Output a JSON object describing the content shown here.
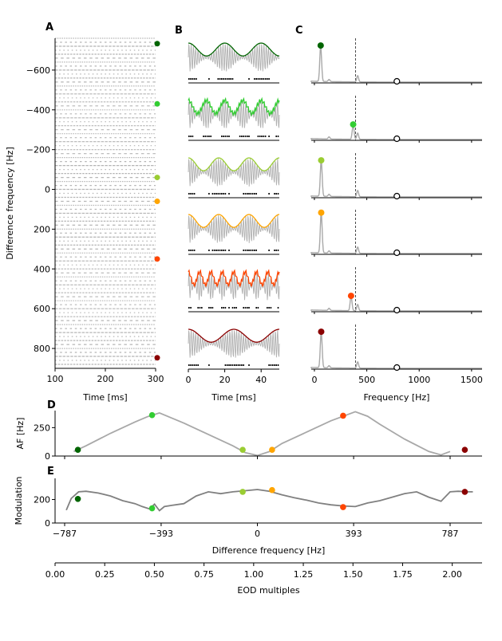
{
  "panel_letters": {
    "A": "A",
    "B": "B",
    "C": "C",
    "D": "D",
    "E": "E"
  },
  "colors": [
    "#006400",
    "#32cd32",
    "#9acd32",
    "#ffa500",
    "#ff4500",
    "#8b0000"
  ],
  "chart_data": [
    {
      "id": "A",
      "type": "scatter",
      "xlabel": "Time [ms]",
      "ylabel": "Difference frequency [Hz]",
      "xlim": [
        100,
        300
      ],
      "ylim": [
        900,
        -760
      ],
      "xticks": [
        100,
        200,
        300
      ],
      "yticks": [
        -600,
        -400,
        -200,
        0,
        200,
        400,
        600,
        800
      ],
      "ytick_labels": [
        "−600",
        "−400",
        "−200",
        "0",
        "200",
        "400",
        "600",
        "800"
      ],
      "spike_raster_rows": {
        "from": -760,
        "to": 880,
        "step": 20
      },
      "markers": [
        {
          "df": -733,
          "color": "#006400"
        },
        {
          "df": -430,
          "color": "#32cd32"
        },
        {
          "df": -60,
          "color": "#9acd32"
        },
        {
          "df": 60,
          "color": "#ffa500"
        },
        {
          "df": 350,
          "color": "#ff4500"
        },
        {
          "df": 847,
          "color": "#8b0000"
        }
      ]
    },
    {
      "id": "B",
      "type": "line",
      "xlabel": "Time [ms]",
      "xlim": [
        0,
        50
      ],
      "xticks": [
        0,
        20,
        40
      ],
      "traces": [
        {
          "color": "#006400",
          "beat_periods": 2.5
        },
        {
          "color": "#32cd32",
          "beat_periods": 5
        },
        {
          "color": "#9acd32",
          "beat_periods": 3
        },
        {
          "color": "#ffa500",
          "beat_periods": 3
        },
        {
          "color": "#ff4500",
          "beat_periods": 8
        },
        {
          "color": "#8b0000",
          "beat_periods": 2
        }
      ]
    },
    {
      "id": "C",
      "type": "line",
      "xlabel": "Frequency [Hz]",
      "xlim": [
        -30,
        1600
      ],
      "xticks": [
        0,
        500,
        1000,
        1500
      ],
      "eod_line_x": 393,
      "black_marker_x": 787,
      "peaks": [
        {
          "x": 60,
          "rel": 0.85,
          "color": "#006400"
        },
        {
          "x": 370,
          "rel": 0.35,
          "color": "#32cd32"
        },
        {
          "x": 65,
          "rel": 0.85,
          "color": "#9acd32"
        },
        {
          "x": 65,
          "rel": 0.95,
          "color": "#ffa500"
        },
        {
          "x": 350,
          "rel": 0.35,
          "color": "#ff4500"
        },
        {
          "x": 65,
          "rel": 0.85,
          "color": "#8b0000"
        }
      ]
    },
    {
      "id": "D",
      "type": "line",
      "ylabel": "AF [Hz]",
      "xlim": [
        -787,
        787
      ],
      "ylim": [
        0,
        400
      ],
      "yticks": [
        0,
        250
      ],
      "x": [
        -750,
        -700,
        -600,
        -500,
        -450,
        -400,
        -300,
        -200,
        -100,
        -50,
        0,
        50,
        100,
        200,
        300,
        400,
        450,
        500,
        600,
        700,
        750,
        787
      ],
      "y": [
        40,
        90,
        200,
        300,
        345,
        380,
        290,
        190,
        90,
        30,
        5,
        40,
        110,
        210,
        310,
        390,
        350,
        280,
        150,
        40,
        10,
        40
      ],
      "markers": [
        {
          "x": -733,
          "y": 55,
          "color": "#006400"
        },
        {
          "x": -430,
          "y": 360,
          "color": "#32cd32"
        },
        {
          "x": -60,
          "y": 55,
          "color": "#9acd32"
        },
        {
          "x": 60,
          "y": 55,
          "color": "#ffa500"
        },
        {
          "x": 350,
          "y": 355,
          "color": "#ff4500"
        },
        {
          "x": 847,
          "y": 55,
          "color": "#8b0000"
        }
      ]
    },
    {
      "id": "E",
      "type": "line",
      "xlabel": "Difference frequency [Hz]",
      "ylabel": "Modulation",
      "xlim": [
        -787,
        910
      ],
      "ylim": [
        0,
        380
      ],
      "yticks": [
        0,
        200
      ],
      "xticks": [
        -787,
        -393,
        0,
        393,
        787
      ],
      "xtick_labels": [
        "−787",
        "−393",
        "0",
        "393",
        "787"
      ],
      "x": [
        -780,
        -760,
        -730,
        -700,
        -650,
        -600,
        -550,
        -500,
        -470,
        -440,
        -420,
        -400,
        -380,
        -350,
        -300,
        -250,
        -200,
        -150,
        -100,
        -50,
        0,
        50,
        100,
        150,
        200,
        250,
        300,
        350,
        400,
        450,
        500,
        550,
        600,
        650,
        700,
        750,
        787,
        820,
        860,
        880
      ],
      "y": [
        110,
        210,
        265,
        270,
        255,
        230,
        190,
        165,
        140,
        120,
        160,
        105,
        140,
        150,
        165,
        230,
        265,
        250,
        265,
        275,
        285,
        270,
        240,
        215,
        195,
        170,
        155,
        145,
        140,
        170,
        190,
        220,
        250,
        265,
        220,
        185,
        265,
        270,
        265,
        265
      ],
      "markers": [
        {
          "x": -733,
          "y": 205,
          "color": "#006400"
        },
        {
          "x": -430,
          "y": 125,
          "color": "#32cd32"
        },
        {
          "x": -60,
          "y": 265,
          "color": "#9acd32"
        },
        {
          "x": 60,
          "y": 280,
          "color": "#ffa500"
        },
        {
          "x": 350,
          "y": 135,
          "color": "#ff4500"
        },
        {
          "x": 847,
          "y": 265,
          "color": "#8b0000"
        }
      ]
    },
    {
      "id": "F",
      "type": "line",
      "xlabel": "EOD multiples",
      "xlim": [
        0,
        2.15
      ],
      "xticks": [
        0.0,
        0.25,
        0.5,
        0.75,
        1.0,
        1.25,
        1.5,
        1.75,
        2.0
      ],
      "xtick_labels": [
        "0.00",
        "0.25",
        "0.50",
        "0.75",
        "1.00",
        "1.25",
        "1.50",
        "1.75",
        "2.00"
      ]
    }
  ]
}
